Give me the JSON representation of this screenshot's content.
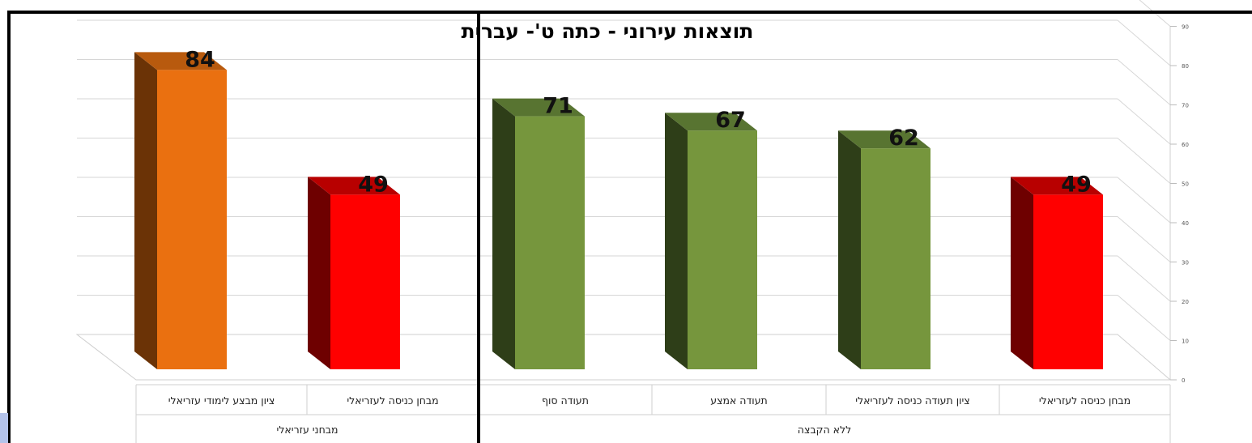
{
  "chart_data": {
    "type": "bar",
    "title": "תוצאות  עירוני - כתה ט'- עברית",
    "xlabel": "",
    "ylabel": "",
    "ylim": [
      0,
      90
    ],
    "yticks": [
      0,
      10,
      20,
      30,
      40,
      50,
      60,
      70,
      80,
      90
    ],
    "grid": true,
    "legend": "none",
    "categories": [
      "ציון מבצע לימודי עזריאלי",
      "מבחן כניסה לעזריאלי",
      "תעודה סוף",
      "תעודה אמצע",
      "ציון תעודה כניסה  לעזריאלי",
      "מבחן כניסה לעזריאלי"
    ],
    "values": [
      84,
      49,
      71,
      67,
      62,
      49
    ],
    "data_labels": [
      "84",
      "49",
      "71",
      "67",
      "62",
      "49"
    ],
    "groups": [
      {
        "label": "מבחני עזריאלי",
        "categories": [
          0,
          1
        ]
      },
      {
        "label": "ללא הקבצה",
        "categories": [
          2,
          3,
          4,
          5
        ]
      }
    ],
    "bar_colors": [
      {
        "front": "#ea7010",
        "side": "#6b3306",
        "top": "#b85a0e"
      },
      {
        "front": "#ff0000",
        "side": "#6e0000",
        "top": "#b80000"
      },
      {
        "front": "#76963d",
        "side": "#2e3e18",
        "top": "#587431"
      },
      {
        "front": "#76963d",
        "side": "#2e3e18",
        "top": "#587431"
      },
      {
        "front": "#76963d",
        "side": "#2e3e18",
        "top": "#587431"
      },
      {
        "front": "#ff0000",
        "side": "#6e0000",
        "top": "#b80000"
      }
    ]
  }
}
